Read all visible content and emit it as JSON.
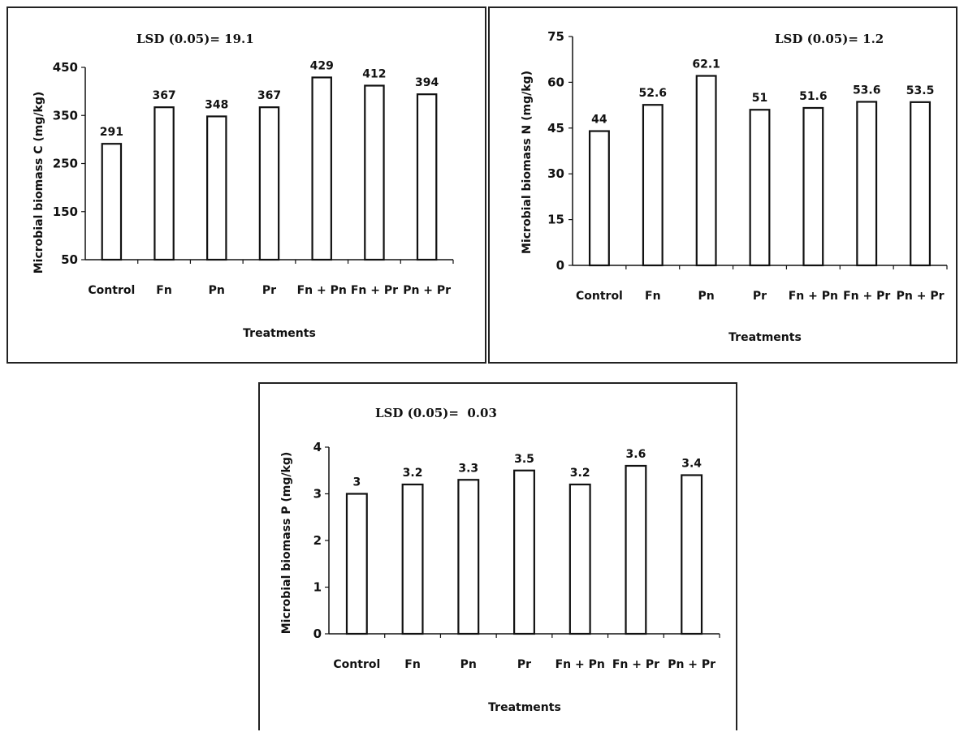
{
  "chart_data": [
    {
      "type": "bar",
      "annotation": "LSD (0.05)= 19.1",
      "xlabel": "Treatments",
      "ylabel": "Microbial biomass C (mg/kg)",
      "categories": [
        "Control",
        "Fn",
        "Pn",
        "Pr",
        "Fn + Pn",
        "Fn + Pr",
        "Pn + Pr"
      ],
      "values": [
        291,
        367,
        348,
        367,
        429,
        412,
        394
      ],
      "value_labels": [
        "291",
        "367",
        "348",
        "367",
        "429",
        "412",
        "394"
      ],
      "yticks": [
        50,
        150,
        250,
        350,
        450
      ],
      "ylim": [
        50,
        450
      ],
      "grid": false,
      "bar_fill": "#ffffff",
      "bar_stroke": "#111111"
    },
    {
      "type": "bar",
      "annotation": "LSD (0.05)= 1.2",
      "xlabel": "Treatments",
      "ylabel": "Microbial biomass N (mg/kg)",
      "categories": [
        "Control",
        "Fn",
        "Pn",
        "Pr",
        "Fn + Pn",
        "Fn + Pr",
        "Pn + Pr"
      ],
      "values": [
        44,
        52.6,
        62.1,
        51,
        51.6,
        53.6,
        53.5
      ],
      "value_labels": [
        "44",
        "52.6",
        "62.1",
        "51",
        "51.6",
        "53.6",
        "53.5"
      ],
      "yticks": [
        0,
        15,
        30,
        45,
        60,
        75
      ],
      "ylim": [
        0,
        75
      ],
      "grid": false,
      "bar_fill": "#ffffff",
      "bar_stroke": "#111111"
    },
    {
      "type": "bar",
      "annotation": "LSD (0.05)=  0.03",
      "xlabel": "Treatments",
      "ylabel": "Microbial biomass P (mg/kg)",
      "categories": [
        "Control",
        "Fn",
        "Pn",
        "Pr",
        "Fn + Pn",
        "Fn + Pr",
        "Pn + Pr"
      ],
      "values": [
        3,
        3.2,
        3.3,
        3.5,
        3.2,
        3.6,
        3.4
      ],
      "value_labels": [
        "3",
        "3.2",
        "3.3",
        "3.5",
        "3.2",
        "3.6",
        "3.4"
      ],
      "yticks": [
        0,
        1,
        2,
        3,
        4
      ],
      "ylim": [
        0,
        4
      ],
      "grid": false,
      "bar_fill": "#ffffff",
      "bar_stroke": "#111111"
    }
  ]
}
